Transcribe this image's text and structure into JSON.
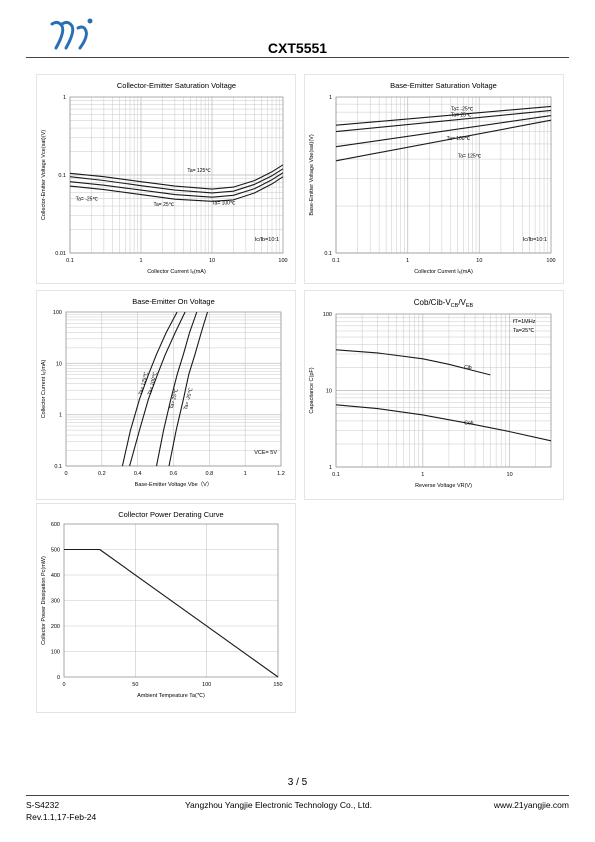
{
  "header": {
    "doc_title": "CXT5551"
  },
  "footer": {
    "page": "3 / 5",
    "doc_no": "S-S4232",
    "revision": "Rev.1.1,17-Feb-24",
    "company": "Yangzhou Yangjie Electronic Technology Co., Ltd.",
    "website": "www.21yangjie.com"
  },
  "colors": {
    "line": "#1a1a1a",
    "grid": "#c8c8c8",
    "frame": "#999999",
    "brand": "#2a6fb4"
  },
  "chart_data": [
    {
      "id": "vcesat",
      "type": "line",
      "title": "Collector-Emitter Saturation Voltage",
      "xlabel": "Collector Current   Iₑ(mA)",
      "ylabel": "Collector-Emitter Voltage   Vce(sat)(V)",
      "xscale": "log",
      "yscale": "log",
      "xlim": [
        0.1,
        100
      ],
      "ylim": [
        0.01,
        1
      ],
      "xticks": [
        "0.1",
        "1",
        "10",
        "100"
      ],
      "yticks": [
        "0.01",
        "0.1",
        "1"
      ],
      "grid": true,
      "condition": "Ic/Ib=10:1",
      "series": [
        {
          "name": "Ta= 125℃",
          "x": [
            0.1,
            0.3,
            1,
            3,
            10,
            20,
            40,
            70,
            100
          ],
          "y": [
            0.105,
            0.095,
            0.082,
            0.072,
            0.066,
            0.07,
            0.085,
            0.11,
            0.135
          ]
        },
        {
          "name": "Ta= 100℃",
          "x": [
            0.1,
            0.3,
            1,
            3,
            10,
            20,
            40,
            70,
            100
          ],
          "y": [
            0.095,
            0.085,
            0.073,
            0.064,
            0.059,
            0.062,
            0.076,
            0.098,
            0.12
          ]
        },
        {
          "name": "Ta= 25℃",
          "x": [
            0.1,
            0.3,
            1,
            3,
            10,
            20,
            40,
            70,
            100
          ],
          "y": [
            0.082,
            0.074,
            0.064,
            0.056,
            0.052,
            0.055,
            0.067,
            0.087,
            0.107
          ]
        },
        {
          "name": "Ta= -25℃",
          "x": [
            0.1,
            0.3,
            1,
            3,
            10,
            20,
            40,
            70,
            100
          ],
          "y": [
            0.072,
            0.065,
            0.056,
            0.049,
            0.046,
            0.048,
            0.059,
            0.077,
            0.095
          ]
        }
      ]
    },
    {
      "id": "vbesat",
      "type": "line",
      "title": "Base-Emitter Saturation Voltage",
      "xlabel": "Collector Current   Iₑ(mA)",
      "ylabel": "Base-Emitter Voltage   Vbe(sat)(V)",
      "xscale": "log",
      "yscale": "log",
      "xlim": [
        0.1,
        100
      ],
      "ylim": [
        0.1,
        1
      ],
      "xticks": [
        "0.1",
        "1",
        "10",
        "100"
      ],
      "yticks": [
        "0.1",
        "1"
      ],
      "grid": true,
      "condition": "Ic/Ib=10:1",
      "series": [
        {
          "name": "Ta= -25℃",
          "x": [
            0.1,
            100
          ],
          "y": [
            0.66,
            0.87
          ]
        },
        {
          "name": "Ta= 25℃",
          "x": [
            0.1,
            100
          ],
          "y": [
            0.6,
            0.82
          ]
        },
        {
          "name": "Ta= 100℃",
          "x": [
            0.1,
            100
          ],
          "y": [
            0.48,
            0.76
          ]
        },
        {
          "name": "Ta= 125℃",
          "x": [
            0.1,
            100
          ],
          "y": [
            0.39,
            0.71
          ]
        }
      ]
    },
    {
      "id": "vbeon",
      "type": "line",
      "title": "Base-Emitter On Voltage",
      "xlabel": "Base-Emitter Voltage   Vbe（V）",
      "ylabel": "Collector Current   Iₑ(mA)",
      "xscale": "linear",
      "yscale": "log",
      "xlim": [
        0,
        1.2
      ],
      "ylim": [
        0.1,
        100
      ],
      "xticks": [
        "0",
        "0.2",
        "0.4",
        "0.6",
        "0.8",
        "1",
        "1.2"
      ],
      "yticks": [
        "0.1",
        "1",
        "10",
        "100"
      ],
      "grid": true,
      "condition": "VCE= 5V",
      "series": [
        {
          "name": "Ta= 125℃",
          "x": [
            0.315,
            0.36,
            0.41,
            0.46,
            0.505,
            0.56,
            0.62
          ],
          "y": [
            0.1,
            0.5,
            2,
            6,
            15,
            40,
            100
          ]
        },
        {
          "name": "Ta= 100℃",
          "x": [
            0.355,
            0.41,
            0.46,
            0.51,
            0.555,
            0.61,
            0.665
          ],
          "y": [
            0.1,
            0.5,
            2,
            6,
            15,
            40,
            100
          ]
        },
        {
          "name": "Ta= 25℃",
          "x": [
            0.505,
            0.545,
            0.585,
            0.62,
            0.655,
            0.69,
            0.73
          ],
          "y": [
            0.1,
            0.5,
            2,
            6,
            15,
            40,
            100
          ]
        },
        {
          "name": "Ta= -25℃",
          "x": [
            0.575,
            0.615,
            0.655,
            0.685,
            0.72,
            0.755,
            0.79
          ],
          "y": [
            0.1,
            0.5,
            2,
            6,
            15,
            40,
            100
          ]
        }
      ]
    },
    {
      "id": "cap",
      "type": "line",
      "title": "Cob/Cib-VCB/VEB",
      "xlabel": "Reverse Voltage   VR(V)",
      "ylabel": "Capacitance   C(pF)",
      "xscale": "log",
      "yscale": "log",
      "xlim": [
        0.1,
        30
      ],
      "ylim": [
        1,
        100
      ],
      "xticks": [
        "0.1",
        "1",
        "10"
      ],
      "yticks": [
        "1",
        "10",
        "100"
      ],
      "grid": true,
      "notes": [
        "fT=1MHz",
        "Ta=25℃"
      ],
      "series": [
        {
          "name": "Cib",
          "x": [
            0.1,
            0.3,
            1,
            2,
            4,
            6
          ],
          "y": [
            34,
            31,
            26,
            22,
            18,
            16
          ]
        },
        {
          "name": "Cob",
          "x": [
            0.1,
            0.3,
            1,
            3,
            10,
            30
          ],
          "y": [
            6.5,
            5.8,
            4.8,
            3.8,
            2.9,
            2.2
          ]
        }
      ]
    },
    {
      "id": "pd",
      "type": "line",
      "title": "Collector Power Derating Curve",
      "xlabel": "Ambient Tempeature Ta(℃)",
      "ylabel": "Collector Power Dissipation   Pc(mW)",
      "xscale": "linear",
      "yscale": "linear",
      "xlim": [
        0,
        150
      ],
      "ylim": [
        0,
        600
      ],
      "xticks": [
        "0",
        "50",
        "100",
        "150"
      ],
      "yticks": [
        "0",
        "100",
        "200",
        "300",
        "400",
        "500",
        "600"
      ],
      "grid": true,
      "series": [
        {
          "name": "",
          "x": [
            0,
            25,
            150
          ],
          "y": [
            500,
            500,
            0
          ]
        }
      ]
    }
  ]
}
